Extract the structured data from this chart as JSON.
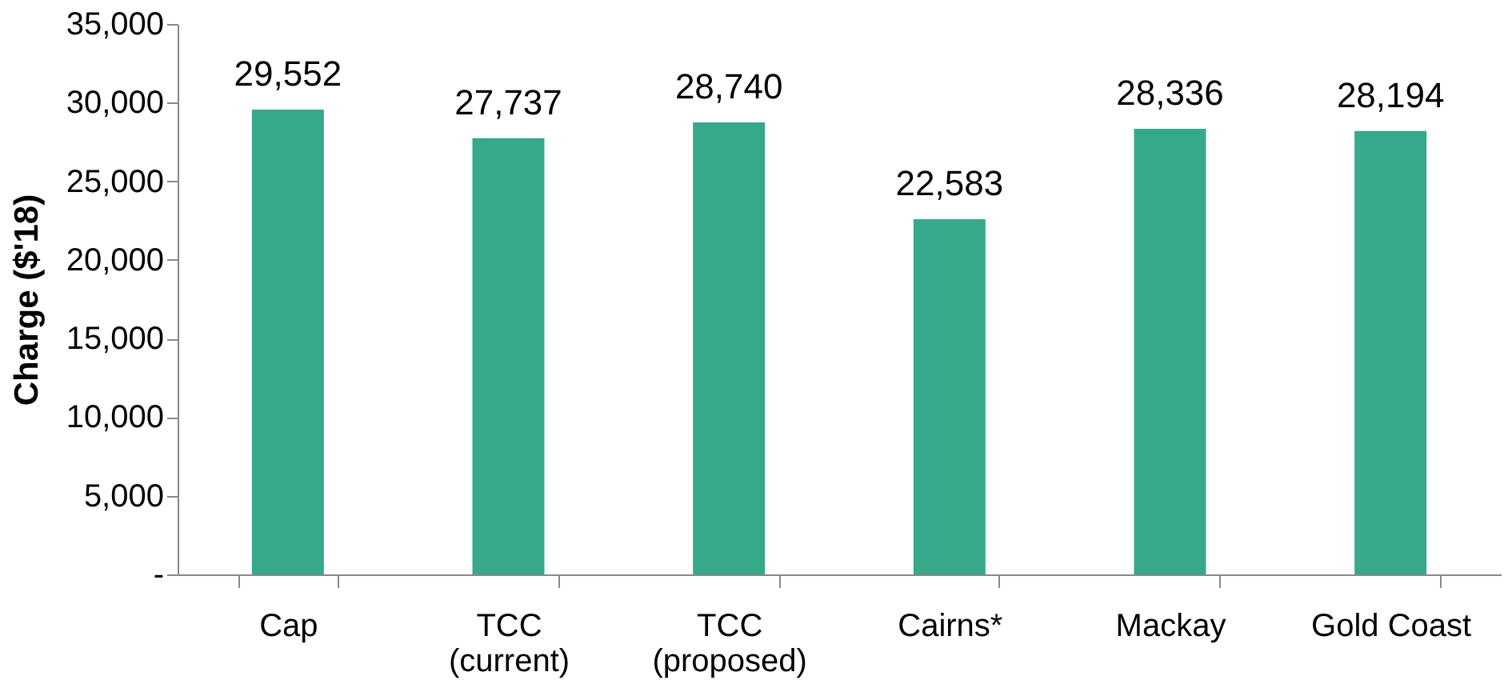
{
  "chart_data": {
    "type": "bar",
    "ylabel": "Charge ($'18)",
    "categories": [
      "Cap",
      "TCC\n(current)",
      "TCC\n(proposed)",
      "Cairns*",
      "Mackay",
      "Gold Coast"
    ],
    "values": [
      29552,
      27737,
      28740,
      22583,
      28336,
      28194
    ],
    "value_labels": [
      "29,552",
      "27,737",
      "28,740",
      "22,583",
      "28,336",
      "28,194"
    ],
    "color": "#36a98a",
    "grid": false,
    "ylim": [
      0,
      35000
    ],
    "yticks": [
      {
        "value": 0,
        "label": "-"
      },
      {
        "value": 5000,
        "label": "5,000"
      },
      {
        "value": 10000,
        "label": "10,000"
      },
      {
        "value": 15000,
        "label": "15,000"
      },
      {
        "value": 20000,
        "label": "20,000"
      },
      {
        "value": 25000,
        "label": "25,000"
      },
      {
        "value": 30000,
        "label": "30,000"
      },
      {
        "value": 35000,
        "label": "35,000"
      }
    ]
  }
}
